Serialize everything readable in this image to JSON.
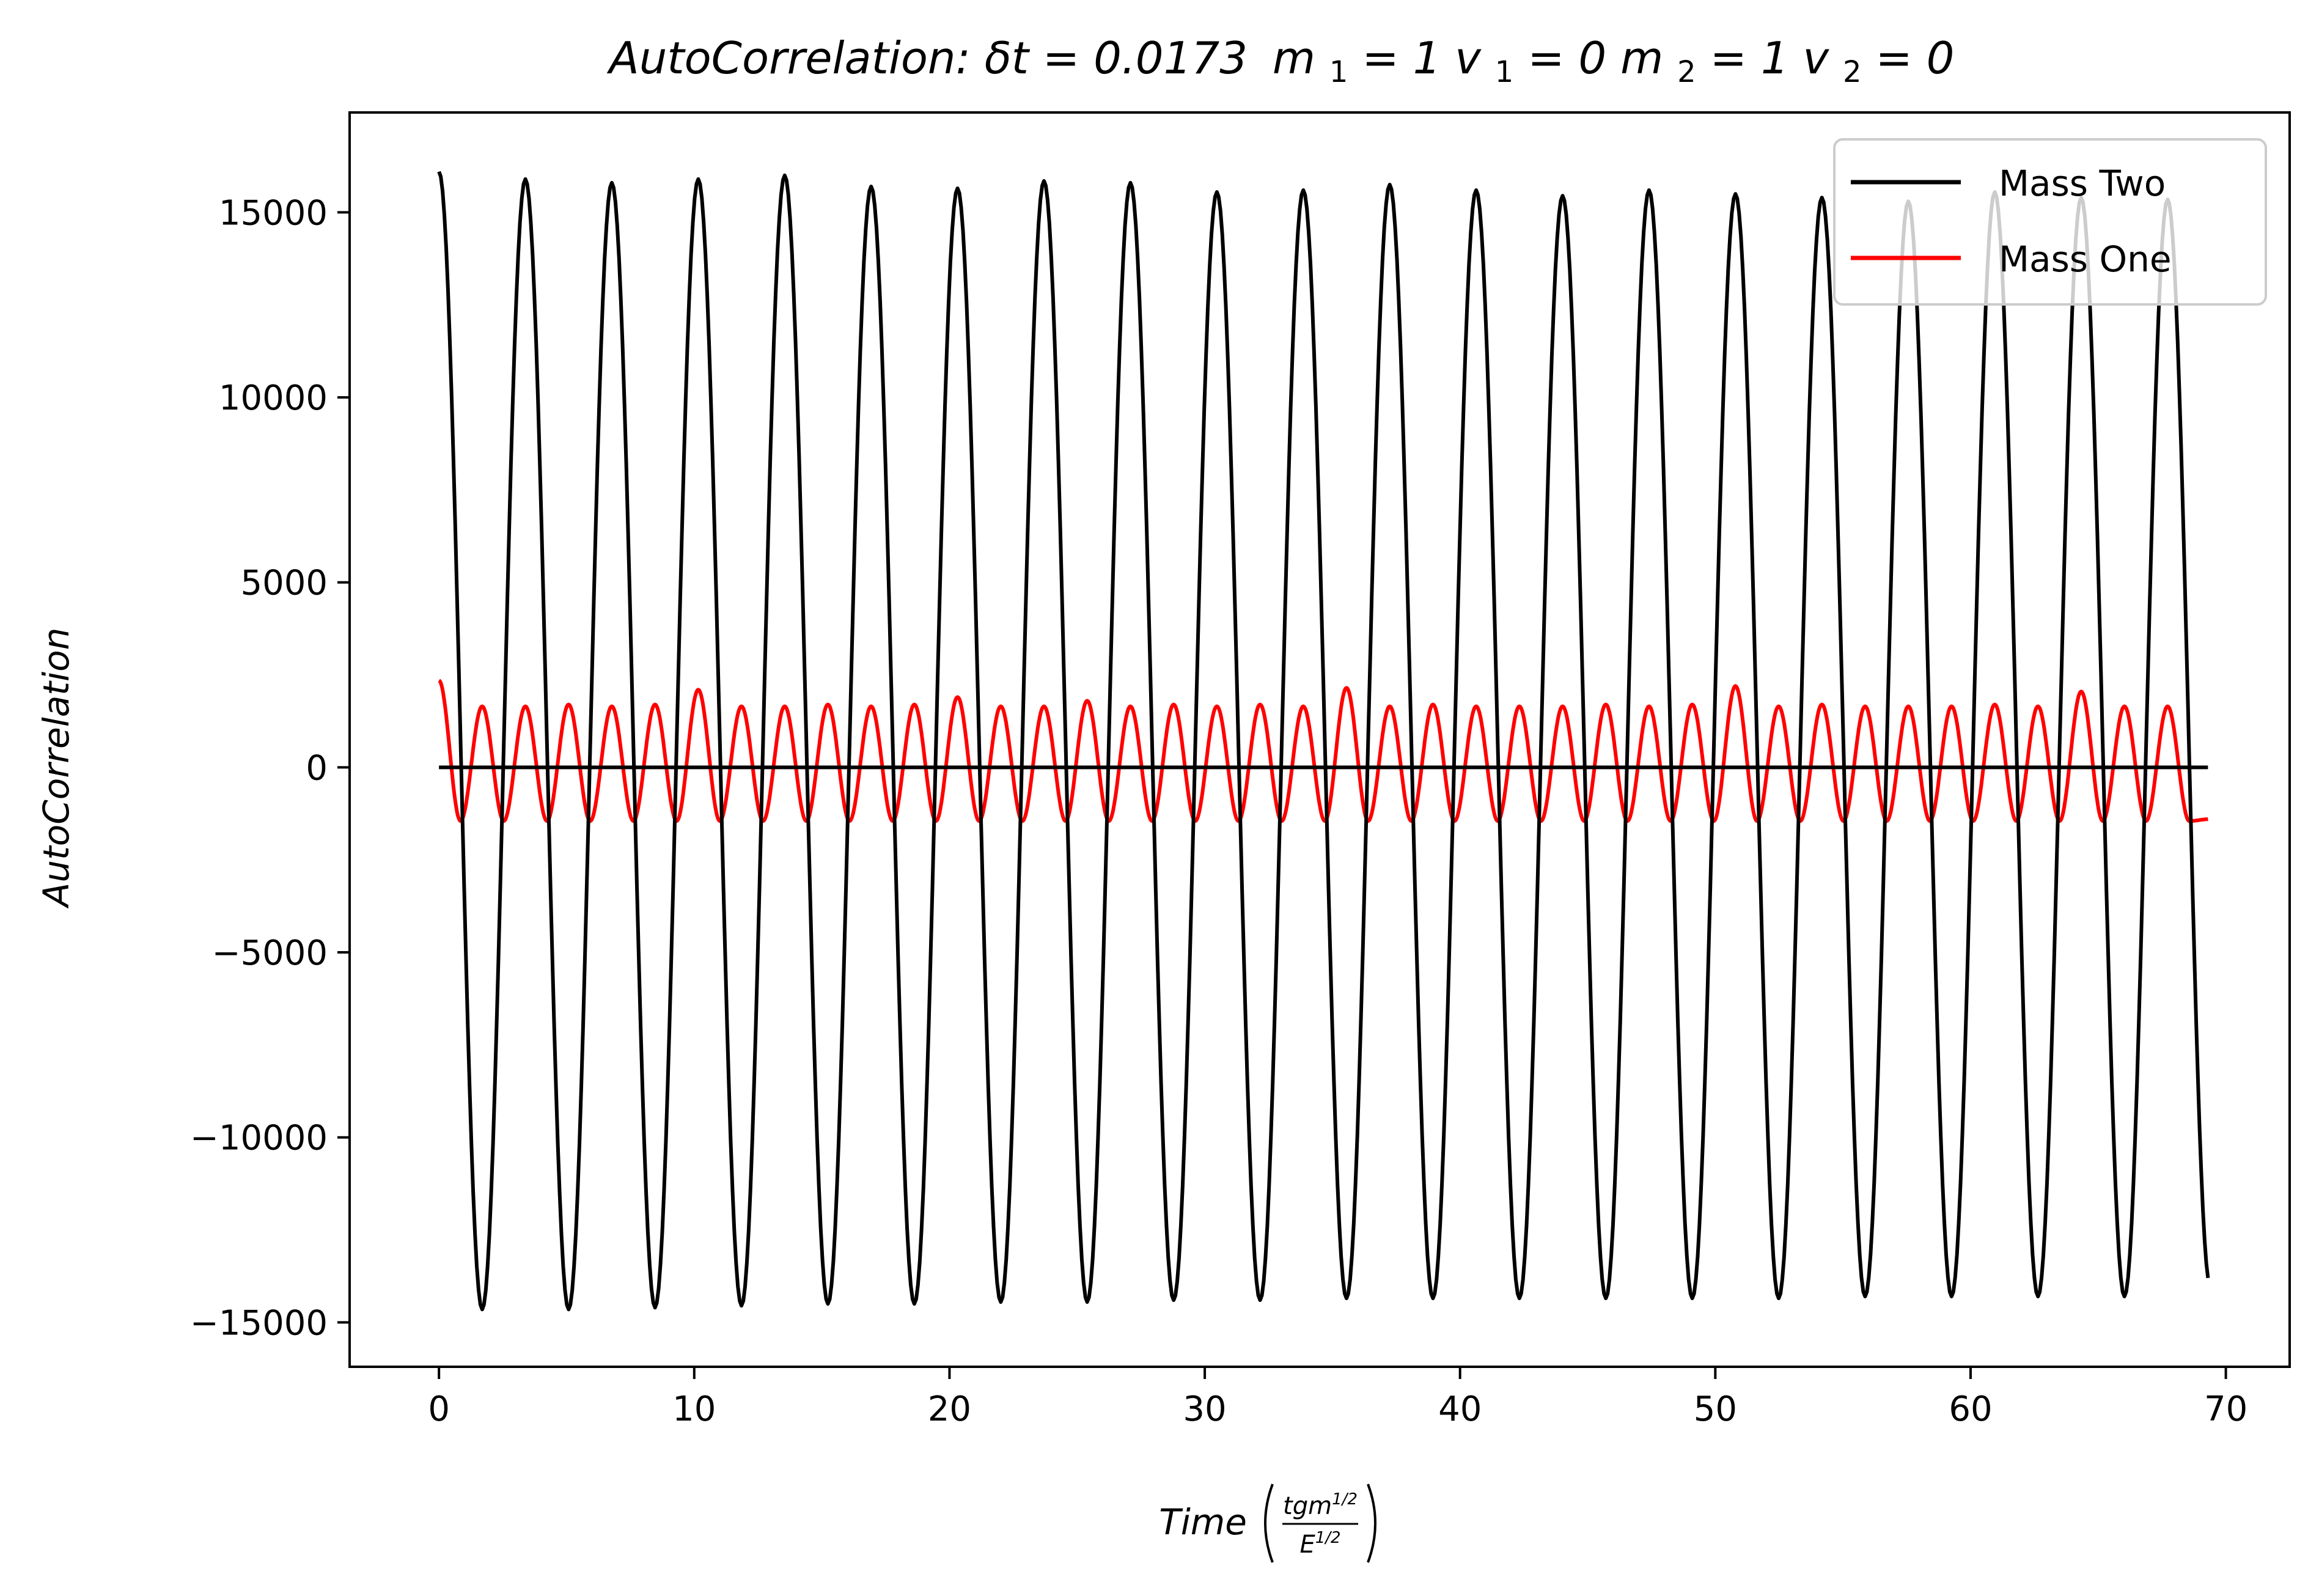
{
  "chart_data": {
    "type": "line",
    "title": "AutoCorrelation: δt = 0.0173 m₁ = 1 v₁ = 0 m₂ = 1 v₂ = 0",
    "title_parts": {
      "prefix": "AutoCorrelation: ",
      "delta_t": "δt = 0.0173",
      "m1": "m",
      "m1_sub": "1",
      "m1_val": " = 1 ",
      "v1": "v",
      "v1_sub": "1",
      "v1_val": " = 0 ",
      "m2": "m",
      "m2_sub": "2",
      "m2_val": " = 1 ",
      "v2": "v",
      "v2_sub": "2",
      "v2_val": " = 0"
    },
    "xlabel": "Time",
    "xlabel_unit": {
      "numerator": "tgm",
      "numerator_sup": "1/2",
      "denominator": "E",
      "denominator_sup": "1/2"
    },
    "ylabel": "AutoCorrelation",
    "xlim": [
      -3.5,
      72.5
    ],
    "ylim": [
      -16200,
      17700
    ],
    "x_ticks": [
      0,
      10,
      20,
      30,
      40,
      50,
      60,
      70
    ],
    "x_tick_labels": [
      "0",
      "10",
      "20",
      "30",
      "40",
      "50",
      "60",
      "70"
    ],
    "y_ticks": [
      -15000,
      -10000,
      -5000,
      0,
      5000,
      10000,
      15000
    ],
    "y_tick_labels": [
      "−15000",
      "−10000",
      "−5000",
      "0",
      "5000",
      "10000",
      "15000"
    ],
    "grid": false,
    "legend_position": "top-right",
    "series": [
      {
        "name": "Mass Two",
        "color": "#000000",
        "x_range": [
          0,
          69.3
        ],
        "oscillation": {
          "period": 3.386,
          "first_peak": 0.0,
          "peaks": [
            16100,
            15900,
            15800,
            15900,
            16000,
            15700,
            15650,
            15850,
            15800,
            15550,
            15600,
            15750,
            15600,
            15450,
            15600,
            15500,
            15400,
            15300,
            15550,
            15400,
            15350
          ],
          "troughs": [
            -14650,
            -14650,
            -14600,
            -14550,
            -14500,
            -14500,
            -14450,
            -14450,
            -14400,
            -14400,
            -14350,
            -14350,
            -14350,
            -14350,
            -14350,
            -14350,
            -14300,
            -14300,
            -14300,
            -14300
          ],
          "end_value": -13800
        },
        "baseline": {
          "y": 0,
          "x_range": [
            0,
            69.3
          ]
        }
      },
      {
        "name": "Mass One",
        "color": "#ff0000",
        "x_range": [
          0,
          69.3
        ],
        "oscillation": {
          "period": 1.693,
          "first_peak": 0.0,
          "peaks": [
            2350,
            1650,
            1650,
            1700,
            1650,
            1700,
            2100,
            1650,
            1650,
            1700,
            1650,
            1700,
            1900,
            1650,
            1650,
            1800,
            1650,
            1700,
            1650,
            1700,
            1650,
            2150,
            1650,
            1700,
            1650,
            1650,
            1650,
            1700,
            1650,
            1700,
            2200,
            1650,
            1700,
            1650,
            1650,
            1650,
            1700,
            1650,
            2050,
            1650,
            1650
          ],
          "trough": -1450,
          "end_value": -1400
        }
      }
    ]
  }
}
